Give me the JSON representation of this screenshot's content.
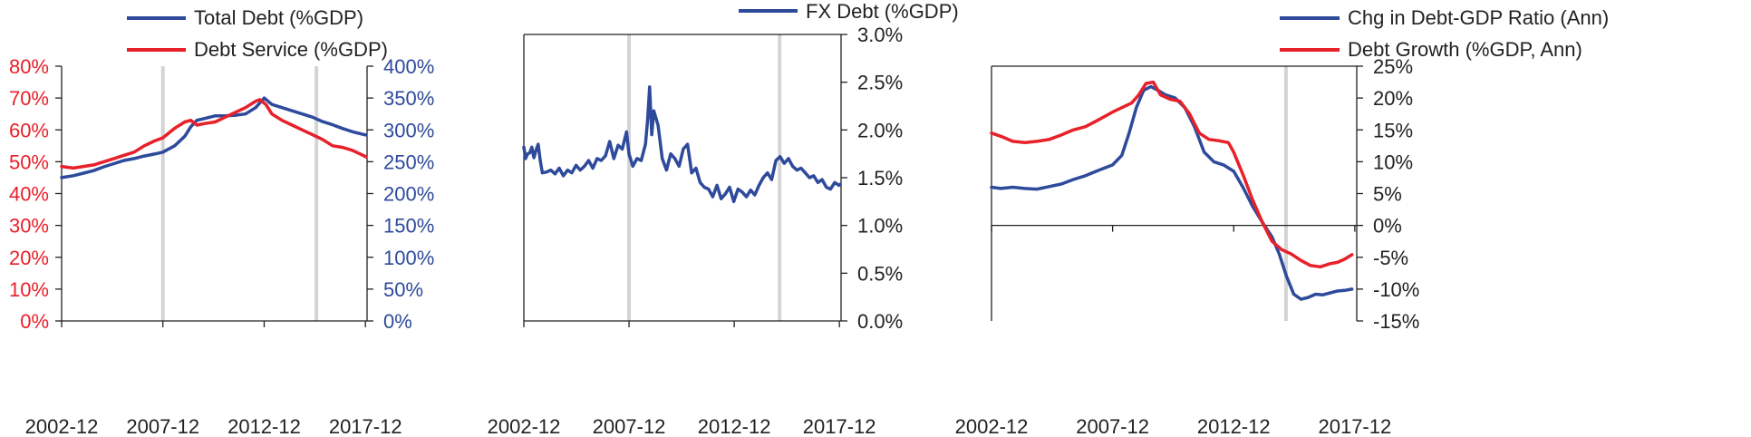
{
  "colors": {
    "blue": "#2E4A9B",
    "red": "#E8202A",
    "axis": "#222222",
    "vline": "#D4D4D4"
  },
  "chart_data": [
    {
      "type": "line",
      "legend": [
        "Total Debt (%GDP)",
        "Debt Service (%GDP)"
      ],
      "x_ticks": [
        "2002-12",
        "2007-12",
        "2012-12",
        "2017-12"
      ],
      "xlim": [
        2002.92,
        2018.0
      ],
      "y_left": {
        "ticks": [
          "0%",
          "10%",
          "20%",
          "30%",
          "40%",
          "50%",
          "60%",
          "70%",
          "80%"
        ],
        "range": [
          0,
          80
        ],
        "color": "red"
      },
      "y_right": {
        "ticks": [
          "0%",
          "50%",
          "100%",
          "150%",
          "200%",
          "250%",
          "300%",
          "350%",
          "400%"
        ],
        "range": [
          0,
          400
        ],
        "color": "blue"
      },
      "vlines": [
        2007.92,
        2015.5
      ],
      "series": [
        {
          "name": "Total Debt (%GDP)",
          "axis": "right",
          "color": "blue",
          "x": [
            2002.92,
            2003.5,
            2004.0,
            2004.5,
            2005.0,
            2005.5,
            2006.0,
            2006.5,
            2007.0,
            2007.5,
            2007.92,
            2008.5,
            2009.0,
            2009.3,
            2009.6,
            2010.0,
            2010.5,
            2011.0,
            2011.5,
            2012.0,
            2012.5,
            2012.92,
            2013.3,
            2013.8,
            2014.3,
            2014.8,
            2015.3,
            2015.8,
            2016.3,
            2016.8,
            2017.3,
            2017.8,
            2017.95
          ],
          "y": [
            225,
            228,
            232,
            236,
            242,
            247,
            252,
            255,
            259,
            262,
            265,
            275,
            290,
            305,
            315,
            318,
            322,
            322,
            323,
            325,
            335,
            350,
            340,
            335,
            330,
            325,
            320,
            313,
            308,
            302,
            297,
            293,
            292
          ]
        },
        {
          "name": "Debt Service (%GDP)",
          "axis": "left",
          "color": "red",
          "x": [
            2002.92,
            2003.5,
            2004.0,
            2004.5,
            2005.0,
            2005.5,
            2006.0,
            2006.5,
            2007.0,
            2007.5,
            2007.92,
            2008.5,
            2009.0,
            2009.3,
            2009.6,
            2010.0,
            2010.5,
            2011.0,
            2011.5,
            2012.0,
            2012.5,
            2012.7,
            2013.0,
            2013.3,
            2013.8,
            2014.3,
            2014.8,
            2015.3,
            2015.8,
            2016.3,
            2016.8,
            2017.3,
            2017.8,
            2017.95
          ],
          "y": [
            48.5,
            48,
            48.5,
            49,
            50,
            51,
            52,
            53,
            55,
            56.5,
            57.5,
            60.5,
            62.5,
            63,
            61.5,
            62,
            62.5,
            64,
            65.5,
            67,
            69,
            69.5,
            68,
            65,
            63,
            61.5,
            60,
            58.5,
            57,
            55,
            54.5,
            53.5,
            52,
            51.5
          ]
        }
      ]
    },
    {
      "type": "line",
      "legend": [
        "FX Debt (%GDP)"
      ],
      "x_ticks": [
        "2002-12",
        "2007-12",
        "2012-12",
        "2017-12"
      ],
      "xlim": [
        2002.92,
        2018.0
      ],
      "y_right": {
        "ticks": [
          "0.0%",
          "0.5%",
          "1.0%",
          "1.5%",
          "2.0%",
          "2.5%",
          "3.0%"
        ],
        "range": [
          0,
          3.0
        ],
        "color": "axis"
      },
      "vlines": [
        2007.92,
        2015.08
      ],
      "series": [
        {
          "name": "FX Debt (%GDP)",
          "axis": "right",
          "color": "blue",
          "x": [
            2002.92,
            2003.0,
            2003.1,
            2003.2,
            2003.3,
            2003.4,
            2003.5,
            2003.6,
            2003.7,
            2003.8,
            2004.0,
            2004.2,
            2004.4,
            2004.6,
            2004.8,
            2005.0,
            2005.2,
            2005.4,
            2005.6,
            2005.8,
            2006.0,
            2006.2,
            2006.4,
            2006.6,
            2006.8,
            2007.0,
            2007.2,
            2007.4,
            2007.6,
            2007.8,
            2007.92,
            2008.1,
            2008.3,
            2008.5,
            2008.7,
            2008.8,
            2008.9,
            2009.0,
            2009.1,
            2009.3,
            2009.5,
            2009.7,
            2009.9,
            2010.1,
            2010.3,
            2010.5,
            2010.7,
            2010.9,
            2011.1,
            2011.3,
            2011.5,
            2011.7,
            2011.9,
            2012.1,
            2012.3,
            2012.5,
            2012.7,
            2012.9,
            2013.1,
            2013.3,
            2013.5,
            2013.7,
            2013.9,
            2014.1,
            2014.3,
            2014.5,
            2014.7,
            2014.9,
            2015.1,
            2015.3,
            2015.5,
            2015.7,
            2015.9,
            2016.1,
            2016.3,
            2016.5,
            2016.7,
            2016.9,
            2017.1,
            2017.3,
            2017.5,
            2017.7,
            2017.9,
            2017.95
          ],
          "y": [
            1.82,
            1.7,
            1.75,
            1.76,
            1.82,
            1.71,
            1.79,
            1.85,
            1.68,
            1.55,
            1.56,
            1.58,
            1.54,
            1.6,
            1.52,
            1.58,
            1.55,
            1.63,
            1.58,
            1.62,
            1.68,
            1.6,
            1.7,
            1.68,
            1.73,
            1.88,
            1.7,
            1.84,
            1.8,
            1.98,
            1.75,
            1.62,
            1.7,
            1.68,
            1.85,
            2.1,
            2.45,
            1.95,
            2.2,
            2.05,
            1.7,
            1.58,
            1.75,
            1.7,
            1.62,
            1.8,
            1.85,
            1.55,
            1.6,
            1.45,
            1.4,
            1.38,
            1.3,
            1.42,
            1.28,
            1.33,
            1.4,
            1.25,
            1.38,
            1.35,
            1.3,
            1.37,
            1.32,
            1.42,
            1.5,
            1.55,
            1.48,
            1.68,
            1.72,
            1.65,
            1.7,
            1.62,
            1.58,
            1.6,
            1.55,
            1.5,
            1.52,
            1.45,
            1.48,
            1.4,
            1.38,
            1.45,
            1.42,
            1.43
          ]
        }
      ]
    },
    {
      "type": "line",
      "legend": [
        "Chg in Debt-GDP Ratio (Ann)",
        "Debt Growth (%GDP, Ann)"
      ],
      "x_ticks": [
        "2002-12",
        "2007-12",
        "2012-12",
        "2017-12"
      ],
      "xlim": [
        2002.92,
        2018.0
      ],
      "y_right": {
        "ticks": [
          "-15%",
          "-10%",
          "-5%",
          "0%",
          "5%",
          "10%",
          "15%",
          "20%",
          "25%"
        ],
        "range": [
          -15,
          25
        ],
        "color": "axis"
      },
      "vlines": [
        2015.08
      ],
      "series": [
        {
          "name": "Chg in Debt-GDP Ratio (Ann)",
          "axis": "right",
          "color": "blue",
          "x": [
            2002.92,
            2003.3,
            2003.8,
            2004.3,
            2004.8,
            2005.3,
            2005.8,
            2006.3,
            2006.8,
            2007.3,
            2007.92,
            2008.3,
            2008.6,
            2008.9,
            2009.2,
            2009.5,
            2009.8,
            2010.1,
            2010.5,
            2010.9,
            2011.3,
            2011.7,
            2012.1,
            2012.5,
            2012.92,
            2013.3,
            2013.7,
            2014.1,
            2014.5,
            2014.8,
            2015.1,
            2015.4,
            2015.7,
            2016.0,
            2016.3,
            2016.6,
            2016.9,
            2017.2,
            2017.5,
            2017.8
          ],
          "y": [
            6.0,
            5.8,
            6.0,
            5.8,
            5.7,
            6.1,
            6.5,
            7.2,
            7.8,
            8.6,
            9.5,
            11,
            14.5,
            18.5,
            21.2,
            21.8,
            21.2,
            20.5,
            20.0,
            18.5,
            15.5,
            11.5,
            10.0,
            9.5,
            8.5,
            6.0,
            3.0,
            0.5,
            -1.8,
            -4.5,
            -8.0,
            -10.8,
            -11.6,
            -11.3,
            -10.8,
            -10.9,
            -10.6,
            -10.3,
            -10.2,
            -10.0
          ]
        },
        {
          "name": "Debt Growth (%GDP, Ann)",
          "axis": "right",
          "color": "red",
          "x": [
            2002.92,
            2003.3,
            2003.8,
            2004.3,
            2004.8,
            2005.3,
            2005.8,
            2006.3,
            2006.8,
            2007.3,
            2007.92,
            2008.3,
            2008.7,
            2009.0,
            2009.3,
            2009.6,
            2009.9,
            2010.3,
            2010.7,
            2011.1,
            2011.5,
            2011.9,
            2012.3,
            2012.7,
            2012.92,
            2013.3,
            2013.7,
            2014.1,
            2014.5,
            2014.9,
            2015.3,
            2015.7,
            2016.1,
            2016.5,
            2016.9,
            2017.2,
            2017.5,
            2017.8
          ],
          "y": [
            14.5,
            14.0,
            13.2,
            13.0,
            13.2,
            13.5,
            14.2,
            15.0,
            15.5,
            16.5,
            17.8,
            18.5,
            19.2,
            20.5,
            22.3,
            22.5,
            20.5,
            19.8,
            19.5,
            17.5,
            14.5,
            13.5,
            13.3,
            13.0,
            11.5,
            8.0,
            4.0,
            0.5,
            -2.5,
            -3.8,
            -4.5,
            -5.5,
            -6.3,
            -6.5,
            -6.0,
            -5.8,
            -5.3,
            -4.6
          ]
        }
      ]
    }
  ]
}
